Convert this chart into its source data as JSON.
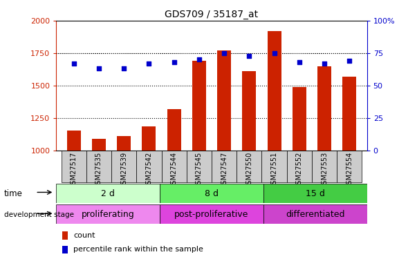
{
  "title": "GDS709 / 35187_at",
  "samples": [
    "GSM27517",
    "GSM27535",
    "GSM27539",
    "GSM27542",
    "GSM27544",
    "GSM27545",
    "GSM27547",
    "GSM27550",
    "GSM27551",
    "GSM27552",
    "GSM27553",
    "GSM27554"
  ],
  "counts": [
    1150,
    1090,
    1110,
    1185,
    1320,
    1690,
    1770,
    1610,
    1920,
    1490,
    1650,
    1570
  ],
  "percentile_ranks": [
    67,
    63,
    63,
    67,
    68,
    70,
    75,
    73,
    75,
    68,
    67,
    69
  ],
  "ylim_left": [
    1000,
    2000
  ],
  "ylim_right": [
    0,
    100
  ],
  "yticks_left": [
    1000,
    1250,
    1500,
    1750,
    2000
  ],
  "yticks_right": [
    0,
    25,
    50,
    75,
    100
  ],
  "bar_color": "#cc2200",
  "scatter_color": "#0000cc",
  "bar_width": 0.55,
  "groups": [
    {
      "label": "2 d",
      "start": 0,
      "end": 4,
      "bg": "#ccffcc"
    },
    {
      "label": "8 d",
      "start": 4,
      "end": 8,
      "bg": "#66ee66"
    },
    {
      "label": "15 d",
      "start": 8,
      "end": 12,
      "bg": "#44cc44"
    }
  ],
  "dev_stages": [
    {
      "label": "proliferating",
      "start": 0,
      "end": 4,
      "bg": "#ee88ee"
    },
    {
      "label": "post-proliferative",
      "start": 4,
      "end": 8,
      "bg": "#dd44dd"
    },
    {
      "label": "differentiated",
      "start": 8,
      "end": 12,
      "bg": "#cc44cc"
    }
  ],
  "time_label": "time",
  "dev_label": "development stage",
  "legend_bar": "count",
  "legend_scatter": "percentile rank within the sample",
  "tick_color_left": "#cc2200",
  "tick_color_right": "#0000cc",
  "xtick_bg": "#cccccc"
}
